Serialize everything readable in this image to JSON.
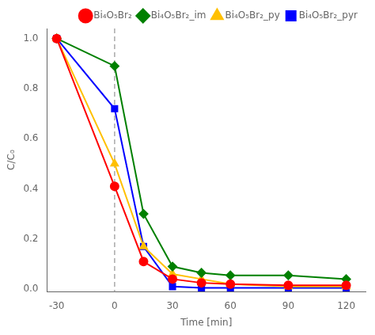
{
  "chart_data": {
    "type": "line",
    "xlabel": "Time [min]",
    "ylabel": "C/C₀",
    "x": [
      -30,
      0,
      15,
      30,
      45,
      60,
      90,
      120
    ],
    "series": [
      {
        "name": "Bi₄O₅Br₂",
        "color": "#ff0000",
        "marker": "circle",
        "values": [
          1.0,
          0.41,
          0.11,
          0.04,
          0.025,
          0.02,
          0.015,
          0.015
        ]
      },
      {
        "name": "Bi₄O₅Br₂_im",
        "color": "#008000",
        "marker": "diamond",
        "values": [
          1.0,
          0.89,
          0.3,
          0.09,
          0.065,
          0.055,
          0.055,
          0.04
        ]
      },
      {
        "name": "Bi₄O₅Br₂_py",
        "color": "#ffc000",
        "marker": "triangle",
        "values": [
          1.0,
          0.5,
          0.17,
          0.06,
          0.04,
          0.02,
          0.01,
          0.01
        ]
      },
      {
        "name": "Bi₄O₅Br₂_pyr",
        "color": "#0000ff",
        "marker": "square",
        "values": [
          1.0,
          0.72,
          0.17,
          0.01,
          0.005,
          0.005,
          0.005,
          0.005
        ]
      }
    ],
    "xlim": [
      -35,
      130
    ],
    "xticks": [
      -30,
      0,
      30,
      60,
      90,
      120
    ],
    "ylim": [
      -0.01,
      1.04
    ],
    "yticks": [
      {
        "value": 0.0,
        "label": "0.0"
      },
      0.2,
      0.4,
      0.6,
      0.8,
      {
        "value": 1.0,
        "label": "1.0"
      }
    ],
    "vline": 0,
    "grid": false,
    "legend": "upper right"
  }
}
